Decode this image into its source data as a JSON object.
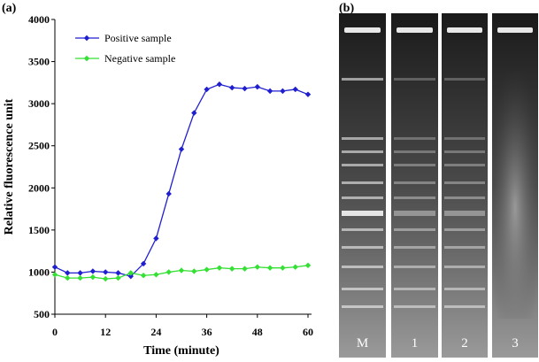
{
  "chart_data": {
    "type": "line",
    "panel_label": "(a)",
    "x_label": "Time (minute)",
    "y_label": "Relative fluorescence unit",
    "x": [
      0,
      3,
      6,
      9,
      12,
      15,
      18,
      21,
      24,
      27,
      30,
      33,
      36,
      39,
      42,
      45,
      48,
      51,
      54,
      57,
      60
    ],
    "series": [
      {
        "name": "Positive sample",
        "color": "#1f1fd0",
        "values": [
          1060,
          990,
          990,
          1010,
          1000,
          990,
          950,
          1100,
          1400,
          1930,
          2460,
          2890,
          3170,
          3230,
          3190,
          3180,
          3200,
          3150,
          3150,
          3170,
          3110
        ]
      },
      {
        "name": "Negative sample",
        "color": "#33e033",
        "values": [
          970,
          930,
          930,
          940,
          920,
          930,
          990,
          960,
          970,
          1000,
          1020,
          1010,
          1030,
          1050,
          1040,
          1040,
          1060,
          1050,
          1050,
          1060,
          1080
        ]
      }
    ],
    "xlim": [
      0,
      60
    ],
    "xticks": [
      0,
      12,
      24,
      36,
      48,
      60
    ],
    "ylim": [
      500,
      4000
    ],
    "yticks": [
      500,
      1000,
      1500,
      2000,
      2500,
      3000,
      3500,
      4000
    ],
    "legend": "upper left"
  },
  "gel": {
    "panel_label": "(b)",
    "lanes": [
      "M",
      "1",
      "2",
      "3"
    ]
  }
}
